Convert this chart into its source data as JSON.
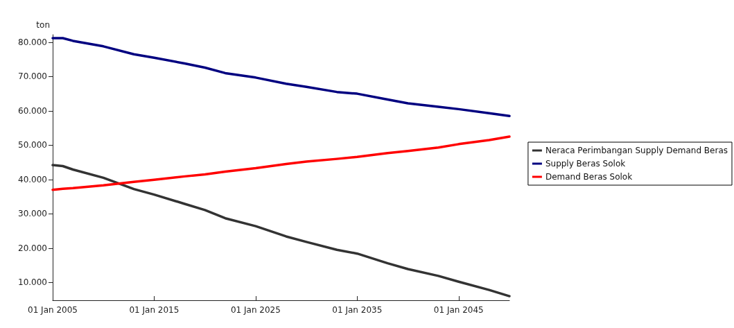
{
  "chart_data": {
    "type": "line",
    "ylabel": "ton",
    "x": [
      "2005",
      "2006",
      "2007",
      "2010",
      "2013",
      "2015",
      "2018",
      "2020",
      "2022",
      "2025",
      "2028",
      "2030",
      "2033",
      "2035",
      "2038",
      "2040",
      "2043",
      "2045",
      "2048",
      "2050"
    ],
    "series": [
      {
        "name": "Neraca Perimbangan Supply Demand Beras",
        "color": "#333333",
        "values": [
          44200,
          43900,
          42900,
          40500,
          37200,
          35600,
          32900,
          31100,
          28700,
          26400,
          23400,
          21800,
          19500,
          18400,
          15600,
          13900,
          11900,
          10200,
          7800,
          6000
        ]
      },
      {
        "name": "Supply Beras Solok",
        "color": "#000080",
        "values": [
          81200,
          81200,
          80400,
          78800,
          76500,
          75500,
          73800,
          72600,
          71000,
          69700,
          67900,
          67000,
          65500,
          65000,
          63300,
          62200,
          61200,
          60500,
          59300,
          58500
        ]
      },
      {
        "name": "Demand Beras Solok",
        "color": "#ff0000",
        "values": [
          37000,
          37300,
          37500,
          38300,
          39300,
          39900,
          40900,
          41500,
          42300,
          43300,
          44500,
          45200,
          46000,
          46600,
          47700,
          48300,
          49300,
          50300,
          51500,
          52500
        ]
      }
    ],
    "xlim": [
      "2005",
      "2050"
    ],
    "xticks": [
      {
        "value": "2005",
        "label": "01 Jan 2005"
      },
      {
        "value": "2015",
        "label": "01 Jan 2015"
      },
      {
        "value": "2025",
        "label": "01 Jan 2025"
      },
      {
        "value": "2035",
        "label": "01 Jan 2035"
      },
      {
        "value": "2045",
        "label": "01 Jan 2045"
      }
    ],
    "ylim": [
      4800,
      82200
    ],
    "yticks": [
      {
        "value": 10000,
        "label": "10.000"
      },
      {
        "value": 20000,
        "label": "20.000"
      },
      {
        "value": 30000,
        "label": "30.000"
      },
      {
        "value": 40000,
        "label": "40.000"
      },
      {
        "value": 50000,
        "label": "50.000"
      },
      {
        "value": 60000,
        "label": "60.000"
      },
      {
        "value": 70000,
        "label": "70.000"
      },
      {
        "value": 80000,
        "label": "80.000"
      }
    ],
    "grid": false,
    "legend": "right",
    "marker": "none",
    "line_style": "solid"
  }
}
